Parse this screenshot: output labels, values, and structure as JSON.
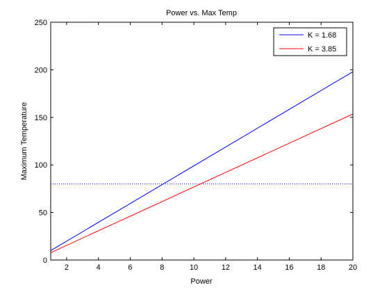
{
  "chart_data": {
    "type": "line",
    "title": "Power vs. Max Temp",
    "xlabel": "Power",
    "ylabel": "Maximum Temperature",
    "xlim": [
      1,
      20
    ],
    "ylim": [
      0,
      250
    ],
    "x_ticks": [
      2,
      4,
      6,
      8,
      10,
      12,
      14,
      16,
      18,
      20
    ],
    "y_ticks": [
      0,
      50,
      100,
      150,
      200,
      250
    ],
    "grid": false,
    "legend_position": "top-right",
    "series": [
      {
        "name": "K = 1.68",
        "color": "#0000ff",
        "x": [
          1,
          20
        ],
        "y": [
          9.9,
          198
        ]
      },
      {
        "name": "K = 3.85",
        "color": "#ff0000",
        "x": [
          1,
          20
        ],
        "y": [
          7.7,
          153.5
        ]
      }
    ],
    "reference_line": {
      "y": 80,
      "color": "#0000ff",
      "style": "dotted"
    }
  }
}
